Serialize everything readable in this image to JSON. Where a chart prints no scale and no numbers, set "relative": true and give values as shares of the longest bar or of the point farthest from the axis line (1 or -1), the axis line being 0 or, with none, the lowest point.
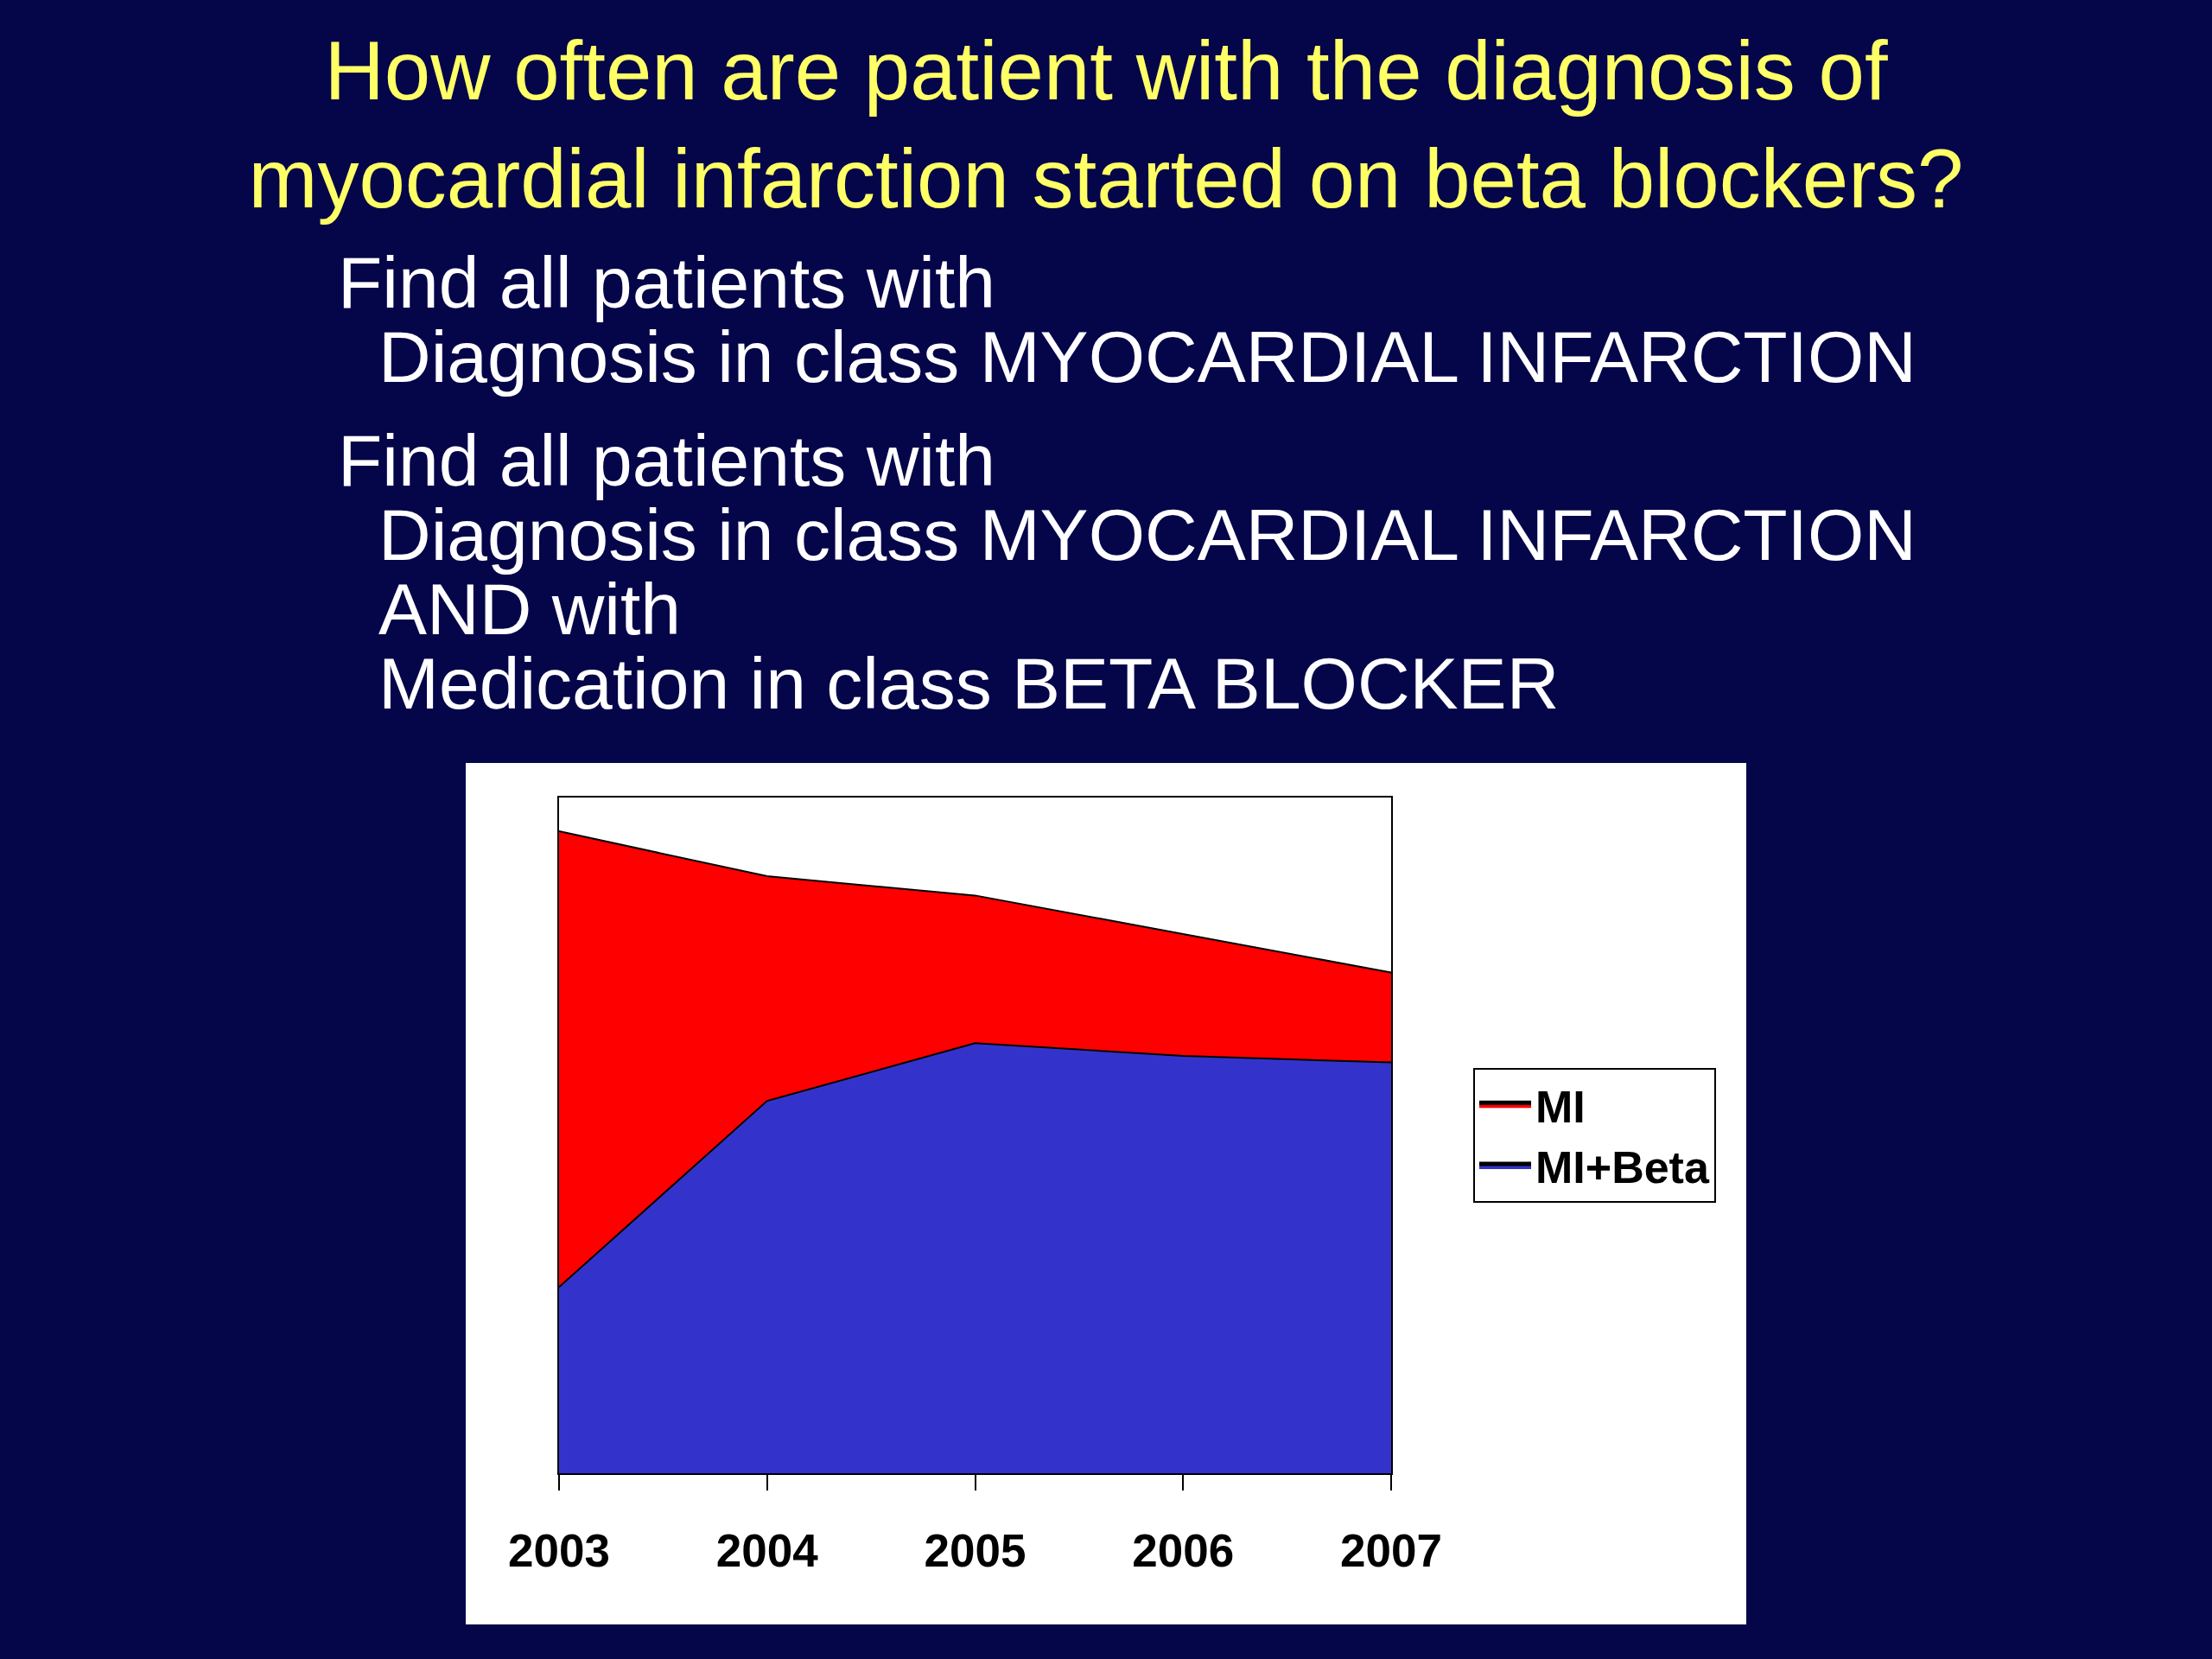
{
  "chart_data": {
    "type": "area",
    "title": "How often are patient with the diagnosis of\nmyocardial infarction started on beta blockers?",
    "annotations": [
      "Find all patients with\nDiagnosis in class MYOCARDIAL INFARCTION",
      "Find all patients with\nDiagnosis in class MYOCARDIAL INFARCTION\nAND with\nMedication in class BETA BLOCKER"
    ],
    "x": [
      2003,
      2004,
      2005,
      2006,
      2007
    ],
    "xlim": [
      2003,
      2007
    ],
    "xticks": [
      2003,
      2004,
      2005,
      2006,
      2007
    ],
    "relative": true,
    "series": [
      {
        "name": "MI",
        "color": "#ff0000",
        "values": [
          1,
          0.93,
          0.9,
          0.84,
          0.78
        ]
      },
      {
        "name": "MI+Beta",
        "color": "#3333cc",
        "values": [
          0.29,
          0.58,
          0.67,
          0.65,
          0.64
        ]
      }
    ],
    "legend": "right"
  }
}
